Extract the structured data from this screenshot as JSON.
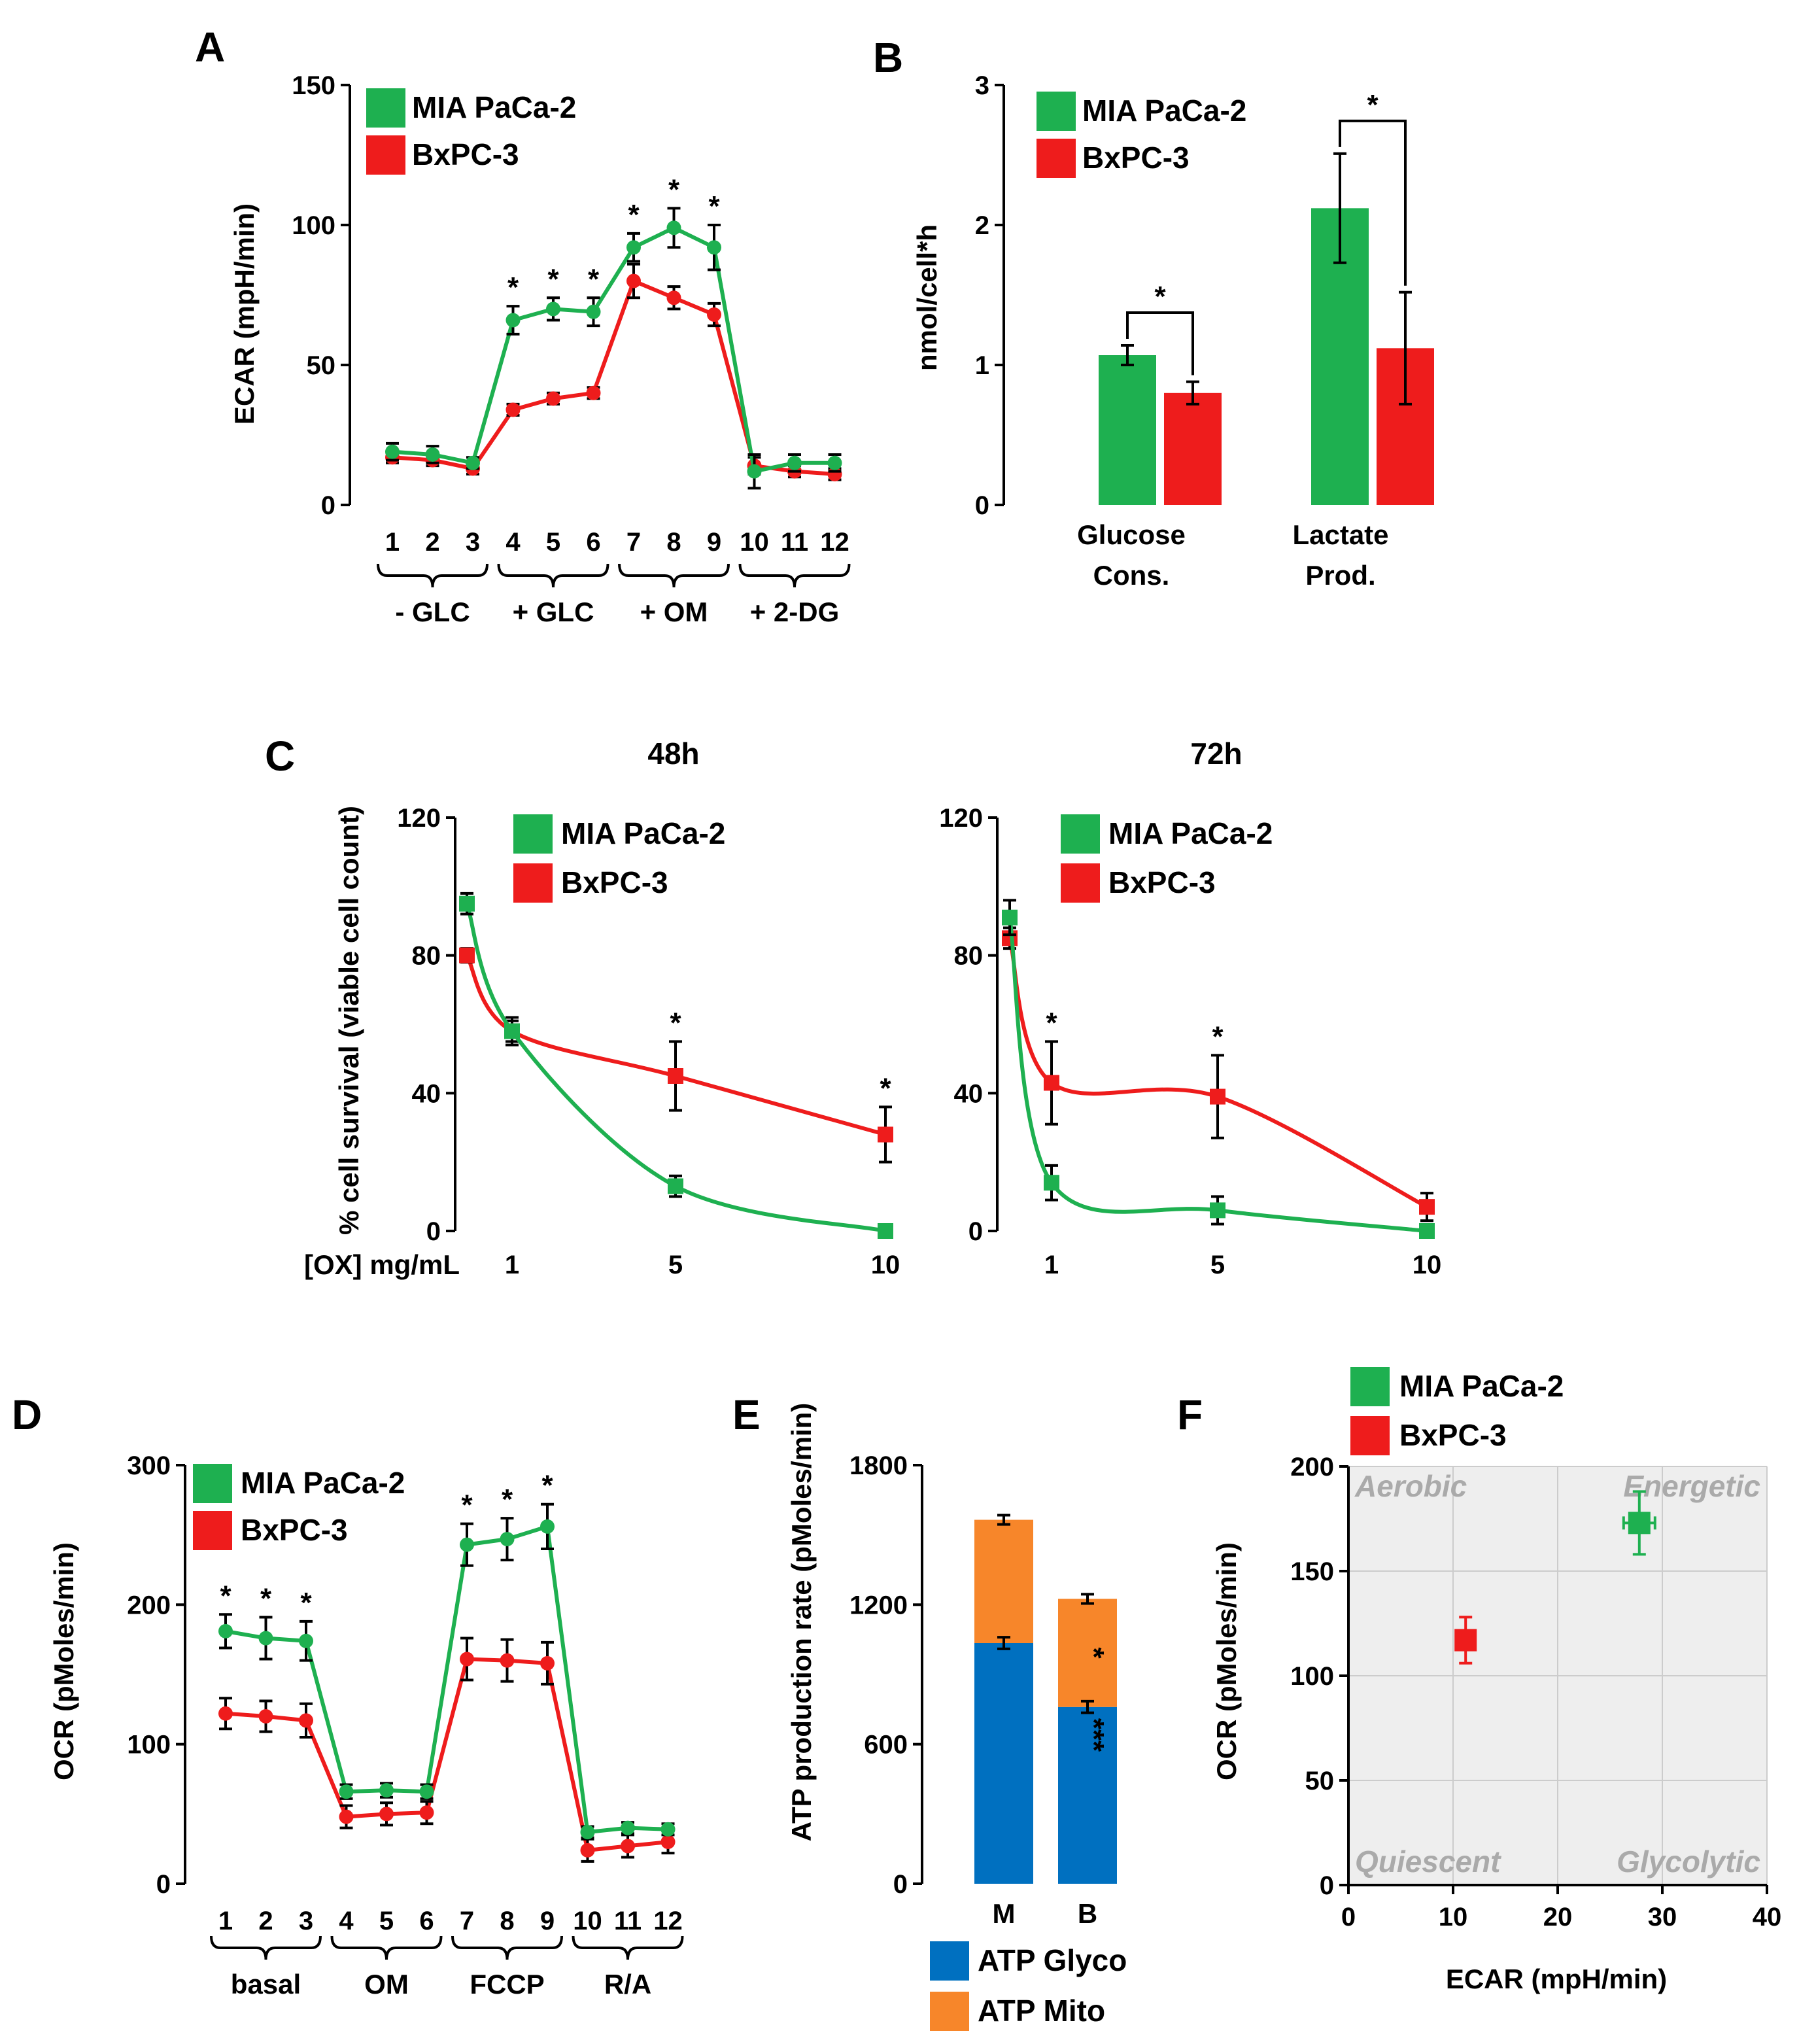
{
  "colors": {
    "mia": "#1EB050",
    "bx": "#EE1C1C",
    "glyco": "#0070C0",
    "mito": "#F7862A",
    "quadrant_bg": "#EEEEEE",
    "quadrant_text": "#AAAAAA"
  },
  "legend": {
    "mia": "MIA PaCa-2",
    "bx": "BxPC-3",
    "glyco": "ATP Glyco",
    "mito": "ATP Mito"
  },
  "chart_data": [
    {
      "panel": "A",
      "type": "line",
      "ylabel": "ECAR (mpH/min)",
      "ylim": [
        0,
        150
      ],
      "yticks": [
        0,
        50,
        100,
        150
      ],
      "x": [
        1,
        2,
        3,
        4,
        5,
        6,
        7,
        8,
        9,
        10,
        11,
        12
      ],
      "xticklabels": [
        "1",
        "2",
        "3",
        "4",
        "5",
        "6",
        "7",
        "8",
        "9",
        "10",
        "11",
        "12"
      ],
      "groups": [
        "- GLC",
        "+ GLC",
        "+ OM",
        "+ 2-DG"
      ],
      "series": [
        {
          "name": "MIA PaCa-2",
          "values": [
            19,
            18,
            15,
            66,
            70,
            69,
            92,
            99,
            92,
            12,
            15,
            15
          ],
          "errors": [
            3,
            3,
            2,
            5,
            4,
            5,
            5,
            7,
            8,
            6,
            3,
            3
          ]
        },
        {
          "name": "BxPC-3",
          "values": [
            17,
            16,
            13,
            34,
            38,
            40,
            80,
            74,
            68,
            14,
            12,
            11
          ],
          "errors": [
            2,
            2,
            2,
            2,
            2,
            2,
            6,
            4,
            4,
            3,
            2,
            2
          ]
        }
      ],
      "significant": [
        4,
        5,
        6,
        7,
        8,
        9
      ]
    },
    {
      "panel": "B",
      "type": "bar",
      "ylabel": "nmol/cell*h",
      "ylim": [
        0,
        3
      ],
      "yticks": [
        0,
        1,
        2,
        3
      ],
      "categories": [
        "Glucose Cons.",
        "Lactate Prod."
      ],
      "series": [
        {
          "name": "MIA PaCa-2",
          "values": [
            1.07,
            2.12
          ],
          "errors": [
            0.07,
            0.39
          ]
        },
        {
          "name": "BxPC-3",
          "values": [
            0.8,
            1.12
          ],
          "errors": [
            0.08,
            0.4
          ]
        }
      ],
      "significance": [
        "*",
        "*"
      ]
    },
    {
      "panel": "C-48h",
      "type": "line",
      "title": "48h",
      "ylabel": "% cell survival (viable cell count)",
      "xlabel": "[OX] mg/mL",
      "ylim": [
        0,
        120
      ],
      "yticks": [
        0,
        40,
        80,
        120
      ],
      "xticklabels": [
        "1",
        "5",
        "10"
      ],
      "series": [
        {
          "name": "MIA PaCa-2",
          "values": [
            95,
            58,
            13,
            0
          ],
          "errors": [
            3,
            4,
            3,
            1
          ]
        },
        {
          "name": "BxPC-3",
          "values": [
            80,
            58,
            45,
            28
          ],
          "errors": [
            2,
            3,
            10,
            8
          ]
        }
      ],
      "significant_at": [
        "5",
        "10"
      ]
    },
    {
      "panel": "C-72h",
      "type": "line",
      "title": "72h",
      "ylim": [
        0,
        120
      ],
      "yticks": [
        0,
        40,
        80,
        120
      ],
      "xticklabels": [
        "1",
        "5",
        "10"
      ],
      "series": [
        {
          "name": "MIA PaCa-2",
          "values": [
            91,
            14,
            6,
            0
          ],
          "errors": [
            5,
            5,
            4,
            1
          ]
        },
        {
          "name": "BxPC-3",
          "values": [
            85,
            43,
            39,
            7
          ],
          "errors": [
            3,
            12,
            12,
            4
          ]
        }
      ],
      "significant_at": [
        "1",
        "5"
      ]
    },
    {
      "panel": "D",
      "type": "line",
      "ylabel": "OCR (pMoles/min)",
      "ylim": [
        0,
        300
      ],
      "yticks": [
        0,
        100,
        200,
        300
      ],
      "x": [
        1,
        2,
        3,
        4,
        5,
        6,
        7,
        8,
        9,
        10,
        11,
        12
      ],
      "xticklabels": [
        "1",
        "2",
        "3",
        "4",
        "5",
        "6",
        "7",
        "8",
        "9",
        "10",
        "11",
        "12"
      ],
      "groups": [
        "basal",
        "OM",
        "FCCP",
        "R/A"
      ],
      "series": [
        {
          "name": "MIA PaCa-2",
          "values": [
            181,
            176,
            174,
            66,
            67,
            66,
            243,
            247,
            256,
            37,
            40,
            39
          ],
          "errors": [
            12,
            15,
            14,
            5,
            5,
            5,
            15,
            15,
            16,
            4,
            4,
            4
          ]
        },
        {
          "name": "BxPC-3",
          "values": [
            122,
            120,
            117,
            48,
            50,
            51,
            161,
            160,
            158,
            24,
            27,
            30
          ],
          "errors": [
            11,
            11,
            12,
            8,
            8,
            8,
            15,
            15,
            15,
            8,
            8,
            8
          ]
        }
      ],
      "significant": [
        1,
        2,
        3,
        7,
        8,
        9
      ]
    },
    {
      "panel": "E",
      "type": "bar",
      "stacked": true,
      "ylabel": "ATP production rate (pMoles/min)",
      "ylim": [
        0,
        1800
      ],
      "yticks": [
        0,
        600,
        1200,
        1800
      ],
      "categories": [
        "M",
        "B"
      ],
      "series": [
        {
          "name": "ATP Glyco",
          "values": [
            1035,
            760
          ],
          "errors": [
            25,
            25
          ]
        },
        {
          "name": "ATP Mito",
          "values": [
            530,
            465
          ],
          "errors": [
            20,
            20
          ]
        }
      ],
      "stars_glyco": "***",
      "stars_mito": "*"
    },
    {
      "panel": "F",
      "type": "scatter",
      "xlabel": "ECAR (mpH/min)",
      "ylabel": "OCR (pMoles/min)",
      "xlim": [
        0,
        40
      ],
      "ylim": [
        0,
        200
      ],
      "xticks": [
        0,
        10,
        20,
        30,
        40
      ],
      "yticks": [
        0,
        50,
        100,
        150,
        200
      ],
      "quadrants": [
        "Aerobic",
        "Energetic",
        "Quiescent",
        "Glycolytic"
      ],
      "series": [
        {
          "name": "MIA PaCa-2",
          "x": 27.8,
          "y": 173,
          "xerr": 1.5,
          "yerr": 15
        },
        {
          "name": "BxPC-3",
          "x": 11.2,
          "y": 117,
          "xerr": 0.5,
          "yerr": 11
        }
      ]
    }
  ],
  "panels": [
    "A",
    "B",
    "C",
    "D",
    "E",
    "F"
  ],
  "star": "*"
}
